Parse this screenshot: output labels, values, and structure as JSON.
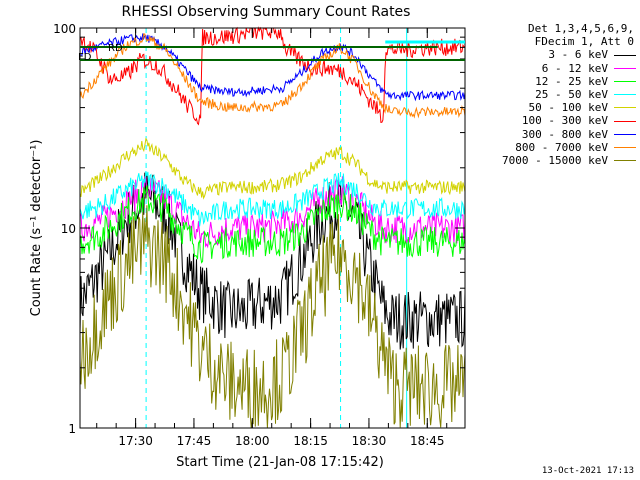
{
  "chart_data": {
    "type": "line",
    "title": "RHESSI Observing Summary Count Rates",
    "xlabel": "Start Time (21-Jan-08 17:15:42)",
    "ylabel": "Count Rate (s⁻¹ detector⁻¹)",
    "yscale": "log",
    "ylim": [
      1,
      100
    ],
    "xlim_minutes_after_start": [
      0,
      99
    ],
    "x_ticks": [
      "17:30",
      "17:45",
      "18:00",
      "18:15",
      "18:30",
      "18:45"
    ],
    "y_ticks": [
      "1",
      "10",
      "100"
    ],
    "legend_header": [
      "Det 1,3,4,5,6,9,",
      "FDecim 1, Att 0"
    ],
    "legend_position": "right",
    "flags": [
      {
        "label": "RD",
        "color": "#000000"
      },
      {
        "label": "FD",
        "color": "#000000"
      }
    ],
    "series": [
      {
        "name": "3 - 6 keV",
        "color": "#000000",
        "x": [
          0,
          6,
          12,
          17,
          22,
          27,
          31,
          38,
          42,
          47,
          52,
          57,
          62,
          67,
          71,
          75,
          78,
          80,
          84,
          88,
          93,
          98
        ],
        "y": [
          4.2,
          6.5,
          11,
          14.5,
          12,
          7,
          4.8,
          3.8,
          3.8,
          4.2,
          4.5,
          7,
          11,
          13.5,
          10.5,
          6,
          4,
          3.5,
          3.5,
          3.5,
          3.5,
          3.5
        ]
      },
      {
        "name": "6 - 12 keV",
        "color": "#ff00ff",
        "x": [
          0,
          6,
          12,
          17,
          22,
          27,
          31,
          38,
          42,
          47,
          52,
          57,
          62,
          67,
          71,
          75,
          78,
          80,
          84,
          88,
          93,
          98
        ],
        "y": [
          10,
          11,
          13.5,
          16,
          14,
          11,
          9,
          10,
          10,
          10,
          10.5,
          11.5,
          14,
          15.5,
          13.5,
          11,
          10,
          10,
          10,
          10,
          10,
          10
        ]
      },
      {
        "name": "12 - 25 keV",
        "color": "#00ff00",
        "x": [
          0,
          6,
          12,
          17,
          22,
          27,
          31,
          38,
          42,
          47,
          52,
          57,
          62,
          67,
          71,
          75,
          78,
          80,
          84,
          88,
          93,
          98
        ],
        "y": [
          8.5,
          9.5,
          12,
          14,
          12.5,
          9.5,
          8,
          8.5,
          8.5,
          8.5,
          8.5,
          9.5,
          12,
          13.5,
          12,
          9.5,
          8.5,
          8.5,
          8.5,
          8.5,
          8.5,
          8.5
        ]
      },
      {
        "name": "25 - 50 keV",
        "color": "#00ffff",
        "x": [
          0,
          6,
          12,
          17,
          22,
          27,
          31,
          38,
          42,
          47,
          52,
          57,
          62,
          67,
          71,
          75,
          78,
          80,
          84,
          88,
          93,
          98
        ],
        "y": [
          12,
          13,
          15.5,
          17.5,
          16,
          13,
          11,
          12.5,
          12.5,
          12.5,
          12.5,
          13.5,
          15.5,
          17,
          15.5,
          13,
          12.5,
          12.5,
          12.5,
          12.5,
          12.5,
          12.5
        ]
      },
      {
        "name": "50 - 100 keV",
        "color": "#d2d200",
        "x": [
          0,
          6,
          12,
          17,
          22,
          27,
          31,
          38,
          42,
          47,
          52,
          57,
          62,
          67,
          71,
          75,
          78,
          80,
          84,
          88,
          93,
          98
        ],
        "y": [
          15,
          18,
          23,
          26,
          22,
          17,
          15,
          16,
          16,
          16,
          16.5,
          18,
          22,
          24,
          21,
          17,
          16,
          16,
          16,
          16,
          16,
          16
        ]
      },
      {
        "name": "100 - 300 keV",
        "color": "#ff0000",
        "x": [
          0,
          4,
          8,
          12,
          16,
          20,
          24,
          28,
          31,
          31.5,
          36,
          40,
          44,
          48,
          52,
          52.5,
          56,
          60,
          64,
          68,
          72,
          76,
          78,
          78.5,
          84,
          90,
          98
        ],
        "y": [
          90,
          75,
          55,
          58,
          70,
          65,
          52,
          40,
          35,
          90,
          90,
          92,
          95,
          96,
          95,
          80,
          70,
          63,
          63,
          60,
          50,
          40,
          35,
          78,
          78,
          80,
          80
        ]
      },
      {
        "name": "300 - 800 keV",
        "color": "#0000ff",
        "x": [
          0,
          6,
          12,
          17,
          22,
          27,
          31,
          38,
          42,
          47,
          52,
          57,
          62,
          67,
          71,
          75,
          78,
          80,
          84,
          88,
          93,
          98
        ],
        "y": [
          75,
          82,
          88,
          90,
          80,
          62,
          50,
          48,
          48,
          49,
          50,
          60,
          75,
          82,
          72,
          56,
          48,
          46,
          46,
          46,
          46,
          46
        ]
      },
      {
        "name": "800 - 7000 keV",
        "color": "#ff8000",
        "x": [
          0,
          6,
          12,
          17,
          22,
          27,
          31,
          38,
          42,
          47,
          52,
          57,
          62,
          67,
          71,
          75,
          78,
          80,
          84,
          88,
          93,
          98
        ],
        "y": [
          45,
          62,
          82,
          90,
          78,
          56,
          43,
          40,
          40,
          40.5,
          41,
          52,
          68,
          80,
          66,
          48,
          41,
          38,
          38,
          38,
          38,
          38
        ]
      },
      {
        "name": "7000 - 15000 keV",
        "color": "#808000",
        "x": [
          0,
          6,
          12,
          17,
          22,
          27,
          31,
          38,
          42,
          47,
          52,
          57,
          62,
          67,
          71,
          75,
          78,
          80,
          84,
          88,
          93,
          98
        ],
        "y": [
          2.2,
          4,
          6.5,
          8.5,
          7,
          4,
          2.5,
          1.7,
          1.6,
          1.6,
          1.8,
          3,
          5.5,
          7.5,
          6,
          3.5,
          2.3,
          1.7,
          1.6,
          1.6,
          1.6,
          1.6
        ]
      }
    ]
  },
  "footer": "13-Oct-2021 17:13"
}
